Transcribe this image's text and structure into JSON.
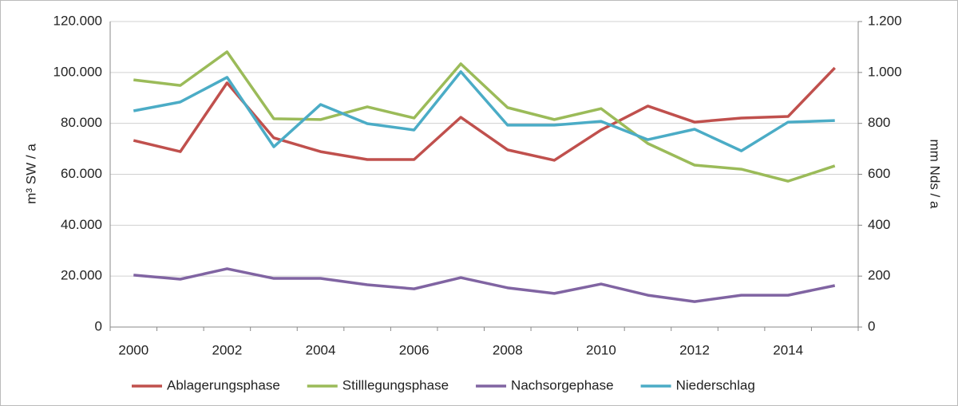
{
  "chart_data": {
    "type": "line",
    "categories": [
      "2000",
      null,
      "2002",
      null,
      "2004",
      null,
      "2006",
      null,
      "2008",
      null,
      "2010",
      null,
      "2012",
      null,
      "2014",
      null
    ],
    "y_label": "m³ SW / a",
    "y2_label": "mm Nds / a",
    "ylim": [
      0,
      120000
    ],
    "yticks": [
      {
        "value": 0,
        "label": "0"
      },
      {
        "value": 20000,
        "label": "20.000"
      },
      {
        "value": 40000,
        "label": "40.000"
      },
      {
        "value": 60000,
        "label": "60.000"
      },
      {
        "value": 80000,
        "label": "80.000"
      },
      {
        "value": 100000,
        "label": "100.000"
      },
      {
        "value": 120000,
        "label": "120.000"
      }
    ],
    "y2lim": [
      0,
      1200
    ],
    "y2ticks": [
      0,
      200,
      400,
      600,
      800,
      {
        "value": 1000,
        "label": "1.000"
      },
      {
        "value": 1200,
        "label": "1.200"
      }
    ],
    "grid": true,
    "legend": "bottom",
    "series": [
      {
        "name": "Ablagerungsphase",
        "color": "#c0504d",
        "values": [
          73300,
          68900,
          95900,
          74300,
          68900,
          65800,
          65800,
          82400,
          69600,
          65500,
          77400,
          86800,
          80500,
          82100,
          82700,
          101800
        ]
      },
      {
        "name": "Stilllegungsphase",
        "color": "#9bbb59",
        "values": [
          97100,
          94900,
          108100,
          81800,
          81500,
          86500,
          82100,
          103400,
          86200,
          81500,
          85800,
          72100,
          63600,
          62000,
          57300,
          63300
        ]
      },
      {
        "name": "Nachsorgephase",
        "color": "#8064a2",
        "values": [
          20400,
          18800,
          22900,
          19100,
          19100,
          16600,
          15000,
          19400,
          15400,
          13200,
          16900,
          12500,
          10000,
          12500,
          12500,
          16300
        ]
      },
      {
        "name": "Niederschlag",
        "color": "#4bacc6",
        "axis": "y2",
        "values": [
          849,
          884,
          981,
          708,
          874,
          799,
          774,
          1003,
          793,
          793,
          808,
          736,
          777,
          692,
          805,
          811
        ]
      }
    ]
  }
}
